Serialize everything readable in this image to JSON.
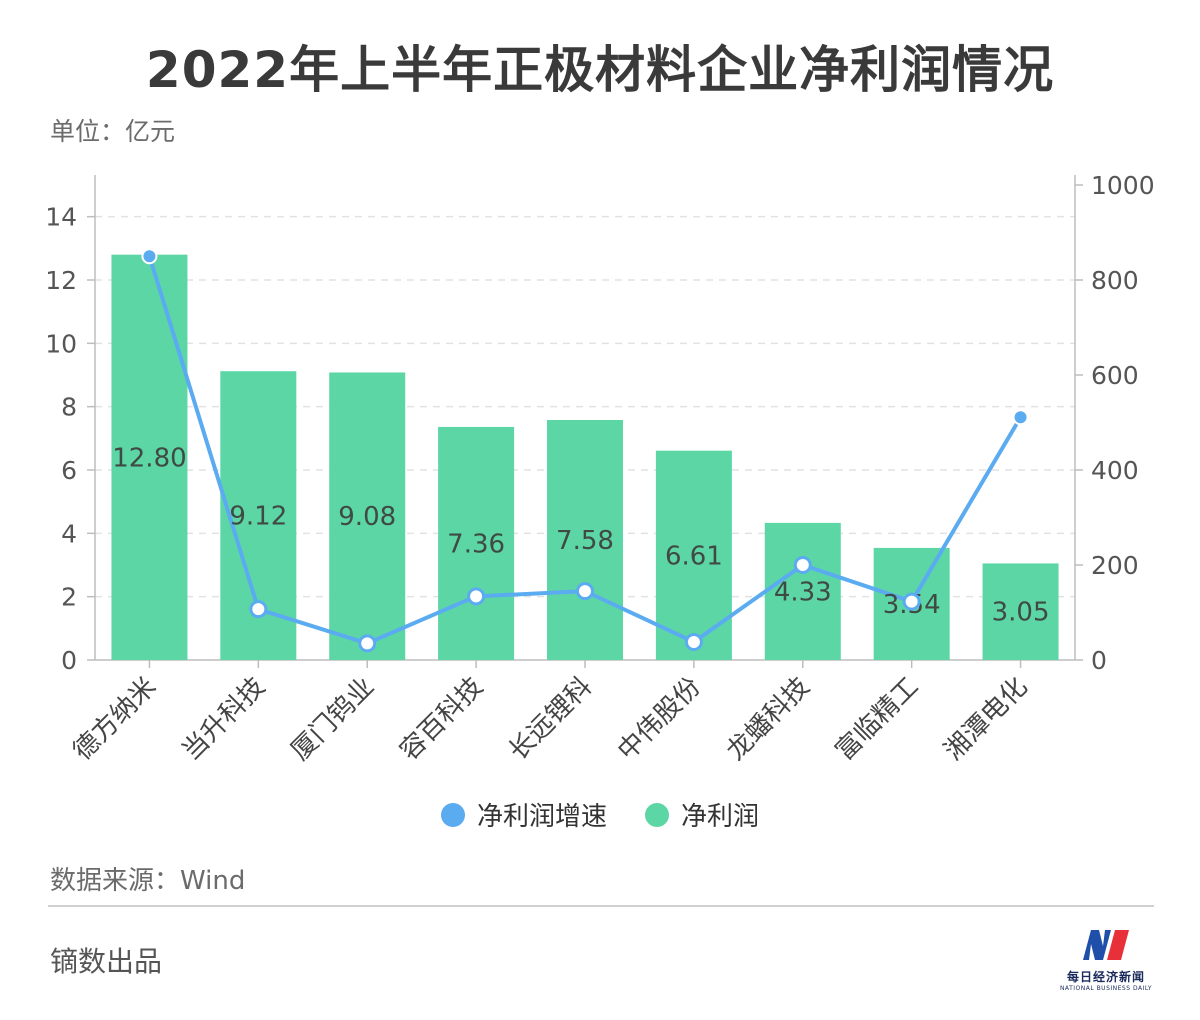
{
  "title": "2022年上半年正极材料企业净利润情况",
  "unit_label": "单位：亿元",
  "source": "数据来源：Wind",
  "footer": "镝数出品",
  "logo": {
    "cn": "每日经济新闻",
    "en": "NATIONAL BUSINESS DAILY"
  },
  "colors": {
    "bar": "#5dd6a6",
    "line": "#5aabf0",
    "axis": "#bdbdbd",
    "grid": "#e2e2e2",
    "text": "#555555"
  },
  "chart_data": {
    "type": "bar",
    "categories": [
      "德方纳米",
      "当升科技",
      "厦门钨业",
      "容百科技",
      "长远锂科",
      "中伟股份",
      "龙蟠科技",
      "富临精工",
      "湘潭电化"
    ],
    "series": [
      {
        "name": "净利润",
        "type": "bar",
        "axis": "left",
        "values": [
          12.8,
          9.12,
          9.08,
          7.36,
          7.58,
          6.61,
          4.33,
          3.54,
          3.05
        ],
        "labels": [
          "12.80",
          "9.12",
          "9.08",
          "7.36",
          "7.58",
          "6.61",
          "4.33",
          "3.54",
          "3.05"
        ]
      },
      {
        "name": "净利润增速",
        "type": "line",
        "axis": "right",
        "values": [
          850,
          107,
          35,
          134,
          145,
          38,
          200,
          123,
          511
        ]
      }
    ],
    "y_left": {
      "min": 0,
      "max": 15,
      "ticks": [
        "0",
        "2",
        "4",
        "6",
        "8",
        "10",
        "12",
        "14"
      ]
    },
    "y_right": {
      "min": 0,
      "max": 1000,
      "ticks": [
        "0",
        "200",
        "400",
        "600",
        "800",
        "1000"
      ]
    },
    "legend": [
      "净利润增速",
      "净利润"
    ],
    "grid": true
  }
}
